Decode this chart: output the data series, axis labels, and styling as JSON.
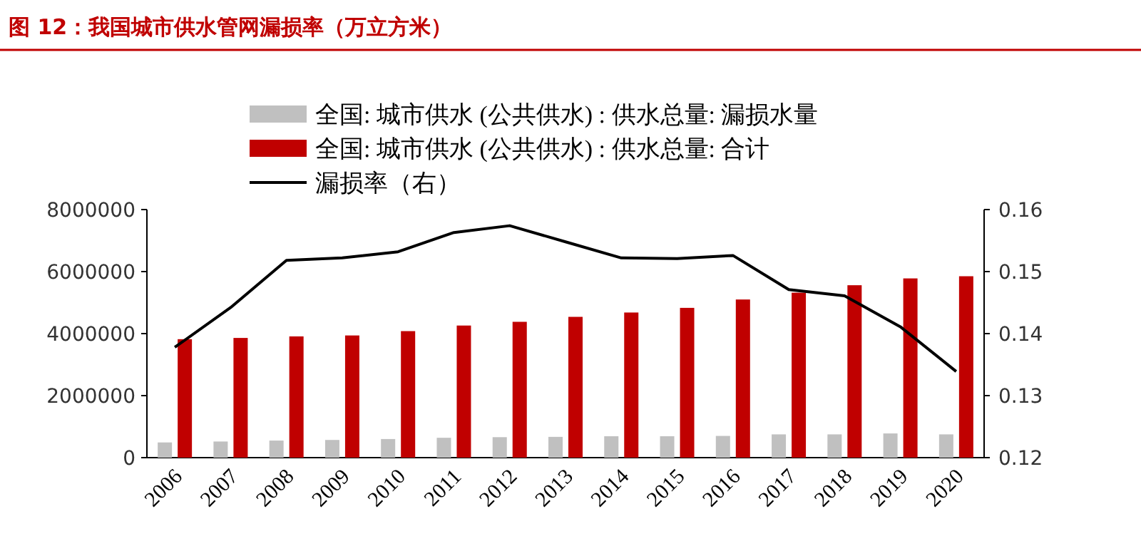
{
  "chart_data": {
    "type": "bar",
    "title": "图 12：我国城市供水管网漏损率（万立方米）",
    "categories": [
      "2006",
      "2007",
      "2008",
      "2009",
      "2010",
      "2011",
      "2012",
      "2013",
      "2014",
      "2015",
      "2016",
      "2017",
      "2018",
      "2019",
      "2020"
    ],
    "series": [
      {
        "name": "全国: 城市供水 (公共供水) : 供水总量: 漏损水量",
        "color": "#c0c0c0",
        "values": [
          490000,
          520000,
          550000,
          570000,
          600000,
          640000,
          660000,
          670000,
          690000,
          690000,
          700000,
          750000,
          750000,
          780000,
          750000
        ]
      },
      {
        "name": "全国: 城市供水 (公共供水) : 供水总量: 合计",
        "color": "#c00000",
        "values": [
          3820000,
          3860000,
          3910000,
          3940000,
          4080000,
          4260000,
          4380000,
          4540000,
          4680000,
          4830000,
          5100000,
          5320000,
          5560000,
          5780000,
          5850000
        ]
      },
      {
        "name": "漏损率（右）",
        "type": "line",
        "axis": "y2",
        "color": "#000000",
        "values": [
          0.1378,
          0.1442,
          0.1518,
          0.1522,
          0.1532,
          0.1563,
          0.1574,
          0.1548,
          0.1522,
          0.1521,
          0.1526,
          0.1471,
          0.1461,
          0.1411,
          0.1339
        ]
      }
    ],
    "ylim": [
      0,
      8000000
    ],
    "yticks": [
      0,
      2000000,
      4000000,
      6000000,
      8000000
    ],
    "y2lim": [
      0.12,
      0.16
    ],
    "y2ticks": [
      0.12,
      0.13,
      0.14,
      0.15,
      0.16
    ],
    "legend": "top"
  }
}
